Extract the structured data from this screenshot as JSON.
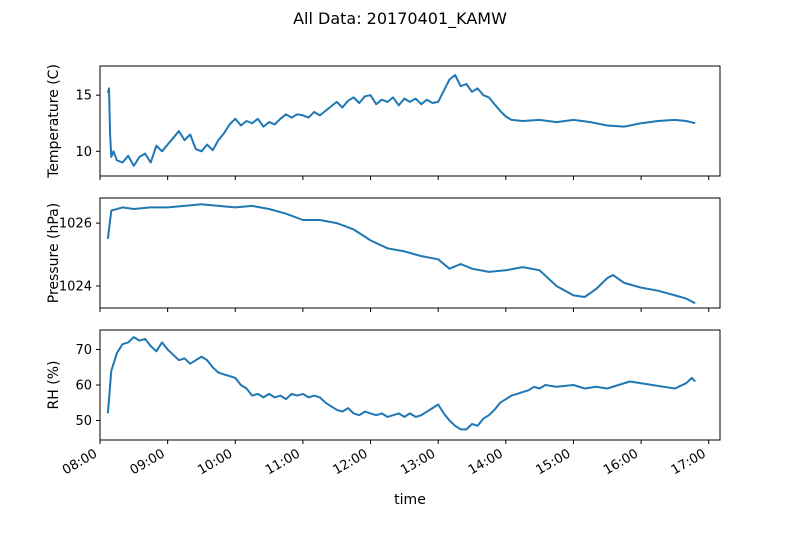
{
  "figure": {
    "title": "All Data: 20170401_KAMW",
    "xlabel": "time",
    "line_color": "#1f77b4"
  },
  "chart_data": [
    {
      "type": "line",
      "ylabel": "Temperature (C)",
      "xlim": [
        "08:00",
        "17:10"
      ],
      "ylim": [
        7.8,
        17.6
      ],
      "yticks": [
        10,
        15
      ],
      "yticklabels": [
        "10",
        "15"
      ],
      "xticks": [
        "08:00",
        "09:00",
        "10:00",
        "11:00",
        "12:00",
        "13:00",
        "14:00",
        "15:00",
        "16:00",
        "17:00"
      ],
      "xtick_labels_shown": false,
      "grid": false,
      "series": [
        {
          "color": "#1f77b4",
          "points": [
            [
              "08:07",
              15.2
            ],
            [
              "08:08",
              15.6
            ],
            [
              "08:09",
              11.5
            ],
            [
              "08:10",
              9.5
            ],
            [
              "08:12",
              10.0
            ],
            [
              "08:15",
              9.2
            ],
            [
              "08:20",
              9.0
            ],
            [
              "08:25",
              9.6
            ],
            [
              "08:30",
              8.7
            ],
            [
              "08:35",
              9.5
            ],
            [
              "08:40",
              9.8
            ],
            [
              "08:45",
              9.0
            ],
            [
              "08:50",
              10.5
            ],
            [
              "08:55",
              10.0
            ],
            [
              "09:00",
              10.6
            ],
            [
              "09:05",
              11.2
            ],
            [
              "09:10",
              11.8
            ],
            [
              "09:15",
              11.0
            ],
            [
              "09:20",
              11.5
            ],
            [
              "09:25",
              10.2
            ],
            [
              "09:30",
              10.0
            ],
            [
              "09:35",
              10.6
            ],
            [
              "09:40",
              10.1
            ],
            [
              "09:45",
              11.0
            ],
            [
              "09:50",
              11.6
            ],
            [
              "09:55",
              12.4
            ],
            [
              "10:00",
              12.9
            ],
            [
              "10:05",
              12.3
            ],
            [
              "10:10",
              12.7
            ],
            [
              "10:15",
              12.5
            ],
            [
              "10:20",
              12.9
            ],
            [
              "10:25",
              12.2
            ],
            [
              "10:30",
              12.6
            ],
            [
              "10:35",
              12.4
            ],
            [
              "10:40",
              12.9
            ],
            [
              "10:45",
              13.3
            ],
            [
              "10:50",
              13.0
            ],
            [
              "10:55",
              13.3
            ],
            [
              "11:00",
              13.2
            ],
            [
              "11:05",
              13.0
            ],
            [
              "11:10",
              13.5
            ],
            [
              "11:15",
              13.2
            ],
            [
              "11:20",
              13.6
            ],
            [
              "11:25",
              14.0
            ],
            [
              "11:30",
              14.4
            ],
            [
              "11:35",
              13.9
            ],
            [
              "11:40",
              14.5
            ],
            [
              "11:45",
              14.8
            ],
            [
              "11:50",
              14.3
            ],
            [
              "11:55",
              14.9
            ],
            [
              "12:00",
              15.0
            ],
            [
              "12:05",
              14.2
            ],
            [
              "12:10",
              14.6
            ],
            [
              "12:15",
              14.4
            ],
            [
              "12:20",
              14.8
            ],
            [
              "12:25",
              14.1
            ],
            [
              "12:30",
              14.7
            ],
            [
              "12:35",
              14.4
            ],
            [
              "12:40",
              14.7
            ],
            [
              "12:45",
              14.2
            ],
            [
              "12:50",
              14.6
            ],
            [
              "12:55",
              14.3
            ],
            [
              "13:00",
              14.4
            ],
            [
              "13:05",
              15.4
            ],
            [
              "13:10",
              16.4
            ],
            [
              "13:15",
              16.8
            ],
            [
              "13:20",
              15.8
            ],
            [
              "13:25",
              16.0
            ],
            [
              "13:30",
              15.3
            ],
            [
              "13:35",
              15.6
            ],
            [
              "13:40",
              15.0
            ],
            [
              "13:45",
              14.8
            ],
            [
              "13:50",
              14.2
            ],
            [
              "13:55",
              13.6
            ],
            [
              "14:00",
              13.1
            ],
            [
              "14:05",
              12.8
            ],
            [
              "14:15",
              12.7
            ],
            [
              "14:30",
              12.8
            ],
            [
              "14:45",
              12.6
            ],
            [
              "15:00",
              12.8
            ],
            [
              "15:15",
              12.6
            ],
            [
              "15:30",
              12.3
            ],
            [
              "15:45",
              12.2
            ],
            [
              "16:00",
              12.5
            ],
            [
              "16:15",
              12.7
            ],
            [
              "16:30",
              12.8
            ],
            [
              "16:40",
              12.7
            ],
            [
              "16:48",
              12.5
            ]
          ]
        }
      ]
    },
    {
      "type": "line",
      "ylabel": "Pressure (hPa)",
      "xlim": [
        "08:00",
        "17:10"
      ],
      "ylim": [
        1023.3,
        1026.8
      ],
      "yticks": [
        1024,
        1026
      ],
      "yticklabels": [
        "1024",
        "1026"
      ],
      "xticks": [
        "08:00",
        "09:00",
        "10:00",
        "11:00",
        "12:00",
        "13:00",
        "14:00",
        "15:00",
        "16:00",
        "17:00"
      ],
      "xtick_labels_shown": false,
      "grid": false,
      "series": [
        {
          "color": "#1f77b4",
          "points": [
            [
              "08:07",
              1025.5
            ],
            [
              "08:08",
              1025.8
            ],
            [
              "08:10",
              1026.4
            ],
            [
              "08:20",
              1026.5
            ],
            [
              "08:30",
              1026.45
            ],
            [
              "08:45",
              1026.5
            ],
            [
              "09:00",
              1026.5
            ],
            [
              "09:15",
              1026.55
            ],
            [
              "09:30",
              1026.6
            ],
            [
              "09:45",
              1026.55
            ],
            [
              "10:00",
              1026.5
            ],
            [
              "10:15",
              1026.55
            ],
            [
              "10:30",
              1026.45
            ],
            [
              "10:45",
              1026.3
            ],
            [
              "11:00",
              1026.1
            ],
            [
              "11:15",
              1026.1
            ],
            [
              "11:30",
              1026.0
            ],
            [
              "11:45",
              1025.8
            ],
            [
              "12:00",
              1025.45
            ],
            [
              "12:15",
              1025.2
            ],
            [
              "12:30",
              1025.1
            ],
            [
              "12:45",
              1024.95
            ],
            [
              "13:00",
              1024.85
            ],
            [
              "13:10",
              1024.55
            ],
            [
              "13:20",
              1024.7
            ],
            [
              "13:30",
              1024.55
            ],
            [
              "13:45",
              1024.45
            ],
            [
              "14:00",
              1024.5
            ],
            [
              "14:15",
              1024.6
            ],
            [
              "14:30",
              1024.5
            ],
            [
              "14:45",
              1024.0
            ],
            [
              "15:00",
              1023.7
            ],
            [
              "15:10",
              1023.65
            ],
            [
              "15:20",
              1023.9
            ],
            [
              "15:30",
              1024.25
            ],
            [
              "15:35",
              1024.35
            ],
            [
              "15:45",
              1024.1
            ],
            [
              "16:00",
              1023.95
            ],
            [
              "16:15",
              1023.85
            ],
            [
              "16:30",
              1023.7
            ],
            [
              "16:40",
              1023.6
            ],
            [
              "16:48",
              1023.45
            ]
          ]
        }
      ]
    },
    {
      "type": "line",
      "ylabel": "RH (%)",
      "xlim": [
        "08:00",
        "17:10"
      ],
      "ylim": [
        44.5,
        75.5
      ],
      "yticks": [
        50,
        60,
        70
      ],
      "yticklabels": [
        "50",
        "60",
        "70"
      ],
      "xticks": [
        "08:00",
        "09:00",
        "10:00",
        "11:00",
        "12:00",
        "13:00",
        "14:00",
        "15:00",
        "16:00",
        "17:00"
      ],
      "xticklabels": [
        "08:00",
        "09:00",
        "10:00",
        "11:00",
        "12:00",
        "13:00",
        "14:00",
        "15:00",
        "16:00",
        "17:00"
      ],
      "xtick_labels_shown": true,
      "grid": false,
      "series": [
        {
          "color": "#1f77b4",
          "points": [
            [
              "08:07",
              52.0
            ],
            [
              "08:08",
              56.0
            ],
            [
              "08:10",
              64.0
            ],
            [
              "08:15",
              69.0
            ],
            [
              "08:20",
              71.5
            ],
            [
              "08:25",
              72.0
            ],
            [
              "08:30",
              73.5
            ],
            [
              "08:35",
              72.5
            ],
            [
              "08:40",
              73.0
            ],
            [
              "08:45",
              71.0
            ],
            [
              "08:50",
              69.5
            ],
            [
              "08:55",
              72.0
            ],
            [
              "09:00",
              70.0
            ],
            [
              "09:05",
              68.5
            ],
            [
              "09:10",
              67.0
            ],
            [
              "09:15",
              67.5
            ],
            [
              "09:20",
              66.0
            ],
            [
              "09:25",
              67.0
            ],
            [
              "09:30",
              68.0
            ],
            [
              "09:35",
              67.0
            ],
            [
              "09:40",
              65.0
            ],
            [
              "09:45",
              63.5
            ],
            [
              "09:50",
              63.0
            ],
            [
              "09:55",
              62.5
            ],
            [
              "10:00",
              62.0
            ],
            [
              "10:05",
              60.0
            ],
            [
              "10:10",
              59.0
            ],
            [
              "10:15",
              57.0
            ],
            [
              "10:20",
              57.5
            ],
            [
              "10:25",
              56.5
            ],
            [
              "10:30",
              57.5
            ],
            [
              "10:35",
              56.5
            ],
            [
              "10:40",
              57.0
            ],
            [
              "10:45",
              56.0
            ],
            [
              "10:50",
              57.5
            ],
            [
              "10:55",
              57.0
            ],
            [
              "11:00",
              57.5
            ],
            [
              "11:05",
              56.5
            ],
            [
              "11:10",
              57.0
            ],
            [
              "11:15",
              56.5
            ],
            [
              "11:20",
              55.0
            ],
            [
              "11:25",
              54.0
            ],
            [
              "11:30",
              53.0
            ],
            [
              "11:35",
              52.5
            ],
            [
              "11:40",
              53.5
            ],
            [
              "11:45",
              52.0
            ],
            [
              "11:50",
              51.5
            ],
            [
              "11:55",
              52.5
            ],
            [
              "12:00",
              52.0
            ],
            [
              "12:05",
              51.5
            ],
            [
              "12:10",
              52.0
            ],
            [
              "12:15",
              51.0
            ],
            [
              "12:20",
              51.5
            ],
            [
              "12:25",
              52.0
            ],
            [
              "12:30",
              51.0
            ],
            [
              "12:35",
              52.0
            ],
            [
              "12:40",
              51.0
            ],
            [
              "12:45",
              51.5
            ],
            [
              "12:50",
              52.5
            ],
            [
              "12:55",
              53.5
            ],
            [
              "13:00",
              54.5
            ],
            [
              "13:05",
              52.0
            ],
            [
              "13:10",
              50.0
            ],
            [
              "13:15",
              48.5
            ],
            [
              "13:20",
              47.5
            ],
            [
              "13:25",
              47.5
            ],
            [
              "13:30",
              49.0
            ],
            [
              "13:35",
              48.5
            ],
            [
              "13:40",
              50.5
            ],
            [
              "13:45",
              51.5
            ],
            [
              "13:50",
              53.0
            ],
            [
              "13:55",
              55.0
            ],
            [
              "14:00",
              56.0
            ],
            [
              "14:05",
              57.0
            ],
            [
              "14:10",
              57.5
            ],
            [
              "14:15",
              58.0
            ],
            [
              "14:20",
              58.5
            ],
            [
              "14:25",
              59.5
            ],
            [
              "14:30",
              59.0
            ],
            [
              "14:35",
              60.0
            ],
            [
              "14:45",
              59.5
            ],
            [
              "15:00",
              60.0
            ],
            [
              "15:10",
              59.0
            ],
            [
              "15:20",
              59.5
            ],
            [
              "15:30",
              59.0
            ],
            [
              "15:40",
              60.0
            ],
            [
              "15:50",
              61.0
            ],
            [
              "16:00",
              60.5
            ],
            [
              "16:10",
              60.0
            ],
            [
              "16:20",
              59.5
            ],
            [
              "16:30",
              59.0
            ],
            [
              "16:40",
              60.5
            ],
            [
              "16:45",
              62.0
            ],
            [
              "16:48",
              61.0
            ]
          ]
        }
      ]
    }
  ]
}
